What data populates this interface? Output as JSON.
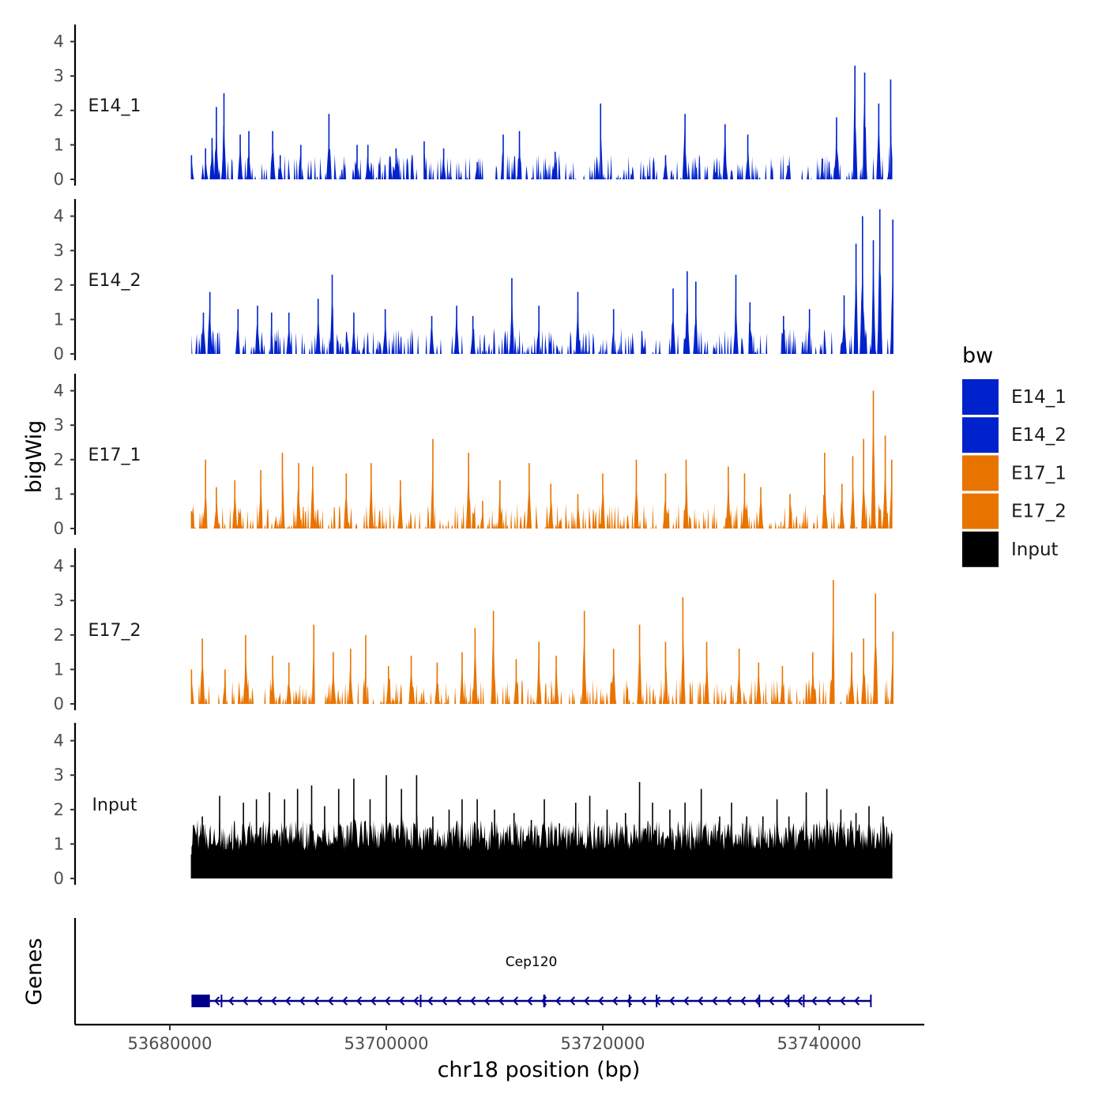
{
  "chart_data": {
    "type": "area",
    "chromosome": "chr18",
    "xlabel": "chr18 position (bp)",
    "ylabel": "bigWig",
    "genes_label": "Genes",
    "xlim": [
      53669500,
      53748500
    ],
    "data_range": [
      53682000,
      53746800
    ],
    "x_ticks": [
      53680000,
      53700000,
      53720000,
      53740000
    ],
    "x_tick_labels": [
      "53680000",
      "53700000",
      "53720000",
      "53740000"
    ],
    "ylim": [
      0,
      4.5
    ],
    "y_ticks": [
      0,
      1,
      2,
      3,
      4
    ],
    "y_tick_labels": [
      "0",
      "1",
      "2",
      "3",
      "4"
    ],
    "colors": {
      "blue": "#0022cc",
      "orange": "#e87400",
      "black": "#000000",
      "gene": "#00008b"
    },
    "tracks": [
      {
        "name": "E14_1",
        "label": "E14_1",
        "color": "#0022cc",
        "peaks": [
          [
            53682000,
            0.7
          ],
          [
            53683300,
            0.9
          ],
          [
            53683900,
            1.2
          ],
          [
            53684300,
            2.1
          ],
          [
            53685000,
            2.5
          ],
          [
            53686500,
            1.3
          ],
          [
            53687300,
            1.4
          ],
          [
            53689500,
            1.4
          ],
          [
            53690200,
            0.7
          ],
          [
            53692100,
            1.0
          ],
          [
            53694700,
            1.9
          ],
          [
            53697300,
            1.0
          ],
          [
            53698300,
            1.0
          ],
          [
            53700900,
            0.9
          ],
          [
            53703500,
            1.1
          ],
          [
            53705300,
            0.9
          ],
          [
            53708400,
            0.5
          ],
          [
            53710800,
            1.3
          ],
          [
            53712300,
            1.4
          ],
          [
            53715600,
            0.8
          ],
          [
            53719800,
            2.2
          ],
          [
            53725800,
            0.7
          ],
          [
            53727600,
            1.9
          ],
          [
            53731300,
            1.6
          ],
          [
            53733400,
            1.3
          ],
          [
            53737100,
            0.4
          ],
          [
            53740300,
            0.6
          ],
          [
            53741600,
            1.8
          ],
          [
            53743300,
            3.3
          ],
          [
            53744200,
            3.1
          ],
          [
            53745500,
            2.2
          ],
          [
            53746600,
            2.9
          ]
        ],
        "gaps": [
          [
            53682500,
            53682800
          ],
          [
            53689000,
            53689300
          ],
          [
            53691200,
            53691500
          ],
          [
            53703200,
            53703500
          ],
          [
            53709000,
            53710000
          ],
          [
            53710800,
            53711100
          ],
          [
            53737500,
            53737800
          ],
          [
            53739500,
            53739800
          ]
        ]
      },
      {
        "name": "E14_2",
        "label": "E14_2",
        "color": "#0022cc",
        "peaks": [
          [
            53683100,
            1.2
          ],
          [
            53683700,
            1.8
          ],
          [
            53686300,
            1.3
          ],
          [
            53688100,
            1.4
          ],
          [
            53689400,
            1.2
          ],
          [
            53691000,
            1.2
          ],
          [
            53693700,
            1.6
          ],
          [
            53695000,
            2.3
          ],
          [
            53697000,
            1.2
          ],
          [
            53699900,
            1.3
          ],
          [
            53704200,
            1.1
          ],
          [
            53706500,
            1.4
          ],
          [
            53708000,
            1.1
          ],
          [
            53711600,
            2.2
          ],
          [
            53714100,
            1.4
          ],
          [
            53717700,
            1.8
          ],
          [
            53721000,
            1.3
          ],
          [
            53726500,
            1.9
          ],
          [
            53727800,
            2.4
          ],
          [
            53728600,
            2.1
          ],
          [
            53732300,
            2.3
          ],
          [
            53733600,
            1.5
          ],
          [
            53736700,
            1.1
          ],
          [
            53739100,
            1.3
          ],
          [
            53742300,
            1.7
          ],
          [
            53743400,
            3.2
          ],
          [
            53744000,
            4.0
          ],
          [
            53745000,
            3.3
          ],
          [
            53745600,
            4.2
          ],
          [
            53746800,
            3.9
          ]
        ],
        "gaps": [
          [
            53684800,
            53686000
          ],
          [
            53691800,
            53692100
          ],
          [
            53704700,
            53705000
          ],
          [
            53710100,
            53710400
          ],
          [
            53733200,
            53733500
          ],
          [
            53735300,
            53736000
          ],
          [
            53739700,
            53740000
          ],
          [
            53741200,
            53741700
          ]
        ]
      },
      {
        "name": "E17_1",
        "label": "E17_1",
        "color": "#e87400",
        "peaks": [
          [
            53682000,
            0.5
          ],
          [
            53683300,
            2.0
          ],
          [
            53684300,
            1.2
          ],
          [
            53686000,
            1.4
          ],
          [
            53688400,
            1.7
          ],
          [
            53690400,
            2.2
          ],
          [
            53691900,
            1.9
          ],
          [
            53693200,
            1.8
          ],
          [
            53696300,
            1.6
          ],
          [
            53698600,
            1.9
          ],
          [
            53701300,
            1.4
          ],
          [
            53704300,
            2.6
          ],
          [
            53707600,
            2.2
          ],
          [
            53708900,
            0.8
          ],
          [
            53710500,
            1.4
          ],
          [
            53713200,
            1.9
          ],
          [
            53715200,
            1.3
          ],
          [
            53717700,
            1.0
          ],
          [
            53720000,
            1.6
          ],
          [
            53723100,
            2.0
          ],
          [
            53725800,
            1.6
          ],
          [
            53727700,
            2.0
          ],
          [
            53731600,
            1.8
          ],
          [
            53733100,
            1.6
          ],
          [
            53734600,
            1.2
          ],
          [
            53737300,
            1.0
          ],
          [
            53740500,
            2.2
          ],
          [
            53742100,
            1.3
          ],
          [
            53743100,
            2.1
          ],
          [
            53744100,
            2.6
          ],
          [
            53745000,
            4.0
          ],
          [
            53746100,
            2.7
          ],
          [
            53746700,
            2.0
          ]
        ],
        "gaps": [
          [
            53709000,
            53709200
          ],
          [
            53735000,
            53735300
          ],
          [
            53739100,
            53739400
          ]
        ]
      },
      {
        "name": "E17_2",
        "label": "E17_2",
        "color": "#e87400",
        "peaks": [
          [
            53682000,
            1.0
          ],
          [
            53683000,
            1.9
          ],
          [
            53685100,
            1.0
          ],
          [
            53687000,
            2.0
          ],
          [
            53689500,
            1.4
          ],
          [
            53691000,
            1.2
          ],
          [
            53693300,
            2.3
          ],
          [
            53695100,
            1.5
          ],
          [
            53696700,
            1.6
          ],
          [
            53698100,
            2.0
          ],
          [
            53700200,
            1.1
          ],
          [
            53702300,
            1.4
          ],
          [
            53704700,
            1.2
          ],
          [
            53707000,
            1.5
          ],
          [
            53708200,
            2.2
          ],
          [
            53709900,
            2.7
          ],
          [
            53712000,
            1.3
          ],
          [
            53714100,
            1.8
          ],
          [
            53715700,
            1.4
          ],
          [
            53718300,
            2.7
          ],
          [
            53721000,
            1.6
          ],
          [
            53723400,
            2.3
          ],
          [
            53725800,
            1.8
          ],
          [
            53727400,
            3.1
          ],
          [
            53729600,
            1.8
          ],
          [
            53732600,
            1.6
          ],
          [
            53734400,
            1.2
          ],
          [
            53736600,
            1.1
          ],
          [
            53739400,
            1.5
          ],
          [
            53741300,
            3.6
          ],
          [
            53743000,
            1.5
          ],
          [
            53744100,
            1.9
          ],
          [
            53745200,
            3.2
          ],
          [
            53746800,
            2.1
          ]
        ],
        "gaps": [
          [
            53693400,
            53693700
          ],
          [
            53714300,
            53714600
          ],
          [
            53722600,
            53722800
          ],
          [
            53741400,
            53741700
          ]
        ]
      },
      {
        "name": "Input",
        "label": "Input",
        "color": "#000000",
        "peaks": [
          [
            53682000,
            0.7
          ],
          [
            53683000,
            1.8
          ],
          [
            53684600,
            2.4
          ],
          [
            53685300,
            1.0
          ],
          [
            53686800,
            2.2
          ],
          [
            53688000,
            2.3
          ],
          [
            53689200,
            2.5
          ],
          [
            53690600,
            2.3
          ],
          [
            53691800,
            2.6
          ],
          [
            53693100,
            2.7
          ],
          [
            53694300,
            2.1
          ],
          [
            53695600,
            2.6
          ],
          [
            53697000,
            2.9
          ],
          [
            53698500,
            2.3
          ],
          [
            53700000,
            3.0
          ],
          [
            53701400,
            2.6
          ],
          [
            53702800,
            3.0
          ],
          [
            53704300,
            1.8
          ],
          [
            53705800,
            2.0
          ],
          [
            53707000,
            2.3
          ],
          [
            53708400,
            2.3
          ],
          [
            53710000,
            2.0
          ],
          [
            53711800,
            1.9
          ],
          [
            53713400,
            1.7
          ],
          [
            53714600,
            2.3
          ],
          [
            53716000,
            1.6
          ],
          [
            53717500,
            2.2
          ],
          [
            53718800,
            2.4
          ],
          [
            53720400,
            2.0
          ],
          [
            53722100,
            1.9
          ],
          [
            53723400,
            2.8
          ],
          [
            53724600,
            2.2
          ],
          [
            53726200,
            2.0
          ],
          [
            53727600,
            2.2
          ],
          [
            53729100,
            2.6
          ],
          [
            53730800,
            1.8
          ],
          [
            53731900,
            2.2
          ],
          [
            53733300,
            1.8
          ],
          [
            53734800,
            1.8
          ],
          [
            53736100,
            2.3
          ],
          [
            53737200,
            1.8
          ],
          [
            53738800,
            2.5
          ],
          [
            53740700,
            2.6
          ],
          [
            53742000,
            2.0
          ],
          [
            53743400,
            1.9
          ],
          [
            53744600,
            2.1
          ],
          [
            53745900,
            1.8
          ],
          [
            53746700,
            1.3
          ]
        ],
        "gaps": []
      }
    ],
    "legend": {
      "title": "bw",
      "position": "right",
      "entries": [
        {
          "label": "E14_1",
          "color": "#0022cc"
        },
        {
          "label": "E14_2",
          "color": "#0022cc"
        },
        {
          "label": "E17_1",
          "color": "#e87400"
        },
        {
          "label": "E17_2",
          "color": "#e87400"
        },
        {
          "label": "Input",
          "color": "#000000"
        }
      ]
    },
    "gene": {
      "name": "Cep120",
      "strand": "-",
      "start": 53682000,
      "end": 53744800,
      "exons": [
        [
          53682000,
          53683700
        ],
        [
          53684700,
          53684800
        ],
        [
          53703100,
          53703200
        ],
        [
          53714500,
          53714700
        ],
        [
          53722400,
          53722500
        ],
        [
          53724900,
          53725000
        ],
        [
          53734400,
          53734500
        ],
        [
          53737100,
          53737200
        ],
        [
          53738500,
          53738600
        ],
        [
          53744700,
          53744800
        ]
      ]
    }
  }
}
